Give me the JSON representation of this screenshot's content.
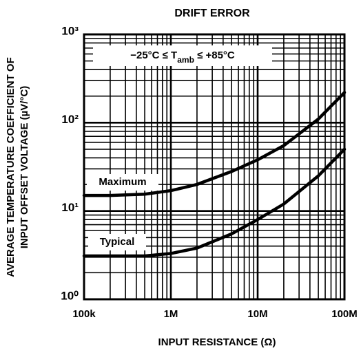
{
  "chart_data": {
    "type": "line",
    "title": "DRIFT ERROR",
    "x_label": "INPUT RESISTANCE (Ω)",
    "y_label": [
      "AVERAGE TEMPERATURE COEFFICIENT OF",
      "INPUT OFFSET VOLTAGE (µV/°C)"
    ],
    "annotation": [
      "−25°C ≤ T",
      "amb",
      " ≤ +85°C"
    ],
    "x": [
      100000,
      200000,
      500000,
      1000000,
      2000000,
      5000000,
      10000000,
      20000000,
      50000000,
      100000000
    ],
    "series": [
      {
        "name": "Maximum",
        "color": "#000000",
        "values": [
          15,
          15,
          15.5,
          17,
          20,
          28,
          38,
          55,
          110,
          220
        ]
      },
      {
        "name": "Typical",
        "color": "#000000",
        "values": [
          3.1,
          3.1,
          3.1,
          3.3,
          3.8,
          5.5,
          8,
          12,
          25,
          50
        ]
      }
    ],
    "xlim": [
      100000,
      100000000
    ],
    "ylim": [
      1,
      1000
    ],
    "xticks": [
      {
        "value": 100000,
        "label": "100k"
      },
      {
        "value": 1000000,
        "label": "1M"
      },
      {
        "value": 10000000,
        "label": "10M"
      },
      {
        "value": 100000000,
        "label": "100M"
      }
    ],
    "yticks": [
      {
        "value": 1,
        "label": "10⁰"
      },
      {
        "value": 10,
        "label": "10¹"
      },
      {
        "value": 100,
        "label": "10²"
      },
      {
        "value": 1000,
        "label": "10³"
      }
    ],
    "xscale": "log",
    "yscale": "log",
    "grid": true,
    "minor_grid": true
  }
}
